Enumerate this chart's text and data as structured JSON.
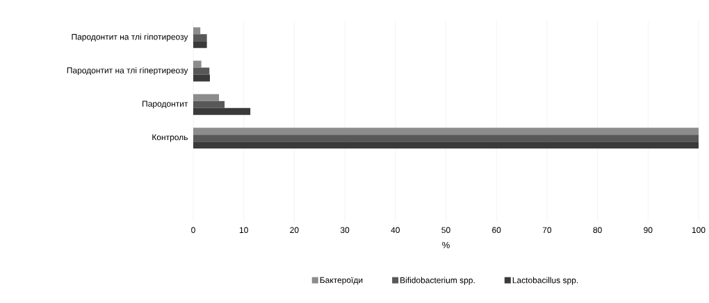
{
  "chart_data": {
    "type": "bar",
    "orientation": "horizontal",
    "xlabel": "%",
    "categories": [
      "Пародонтит на тлі гіпотиреозу",
      "Пародонтит на тлі гіпертиреозу",
      "Пародонтит",
      "Контроль",
      null,
      null
    ],
    "series": [
      {
        "name": "Бактероїди",
        "color": "#8c8c8c",
        "values": [
          1.4,
          1.6,
          5.1,
          100,
          null,
          null
        ]
      },
      {
        "name": "Bifidobacterium spp.",
        "color": "#585858",
        "values": [
          2.7,
          3.2,
          6.2,
          100,
          null,
          null
        ]
      },
      {
        "name": "Lactobacillus spp.",
        "color": "#3a3a3a",
        "values": [
          2.7,
          3.3,
          11.3,
          100,
          null,
          null
        ]
      }
    ],
    "xlim": [
      0,
      100
    ],
    "xticks": [
      0,
      10,
      20,
      30,
      40,
      50,
      60,
      70,
      80,
      90,
      100
    ],
    "grid": "x",
    "legend": "bottom"
  }
}
